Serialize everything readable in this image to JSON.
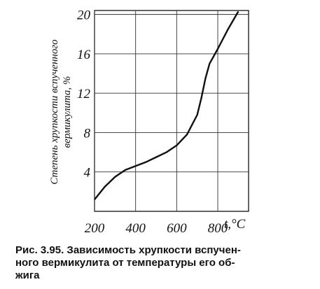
{
  "chart_data": {
    "type": "line",
    "y_label": [
      "Степень хрупкости вспученного",
      "вермикулита, %"
    ],
    "x_label": "t,°C",
    "caption": [
      "Рис. 3.95. Зависимость хрупкости вспучен-",
      "ного вермикулита от температуры его об-",
      "жига"
    ],
    "x": [
      200,
      250,
      300,
      350,
      400,
      450,
      500,
      550,
      600,
      650,
      700,
      720,
      740,
      760,
      800,
      850,
      900
    ],
    "series": [
      {
        "color": "#111111",
        "values": [
          1.2,
          2.5,
          3.5,
          4.2,
          4.6,
          5.0,
          5.5,
          6.0,
          6.7,
          7.8,
          9.8,
          11.5,
          13.5,
          15.0,
          16.5,
          18.5,
          20.3
        ]
      }
    ],
    "xlim": [
      200,
      950
    ],
    "xticks": [
      200,
      400,
      600,
      800
    ],
    "ylim": [
      0,
      20.4
    ],
    "yticks": [
      4,
      8,
      12,
      16,
      20
    ],
    "grid": true
  }
}
